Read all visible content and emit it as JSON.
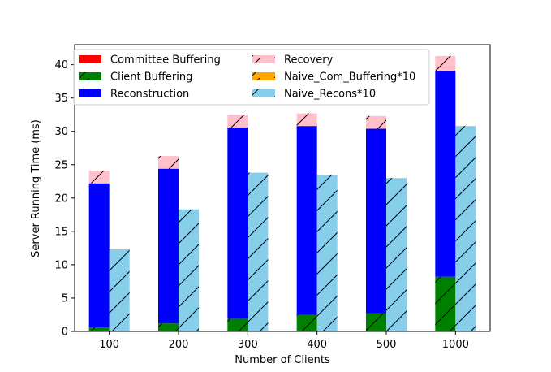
{
  "chart_data": {
    "type": "bar",
    "xlabel": "Number of Clients",
    "ylabel": "Server Running Time (ms)",
    "categories": [
      "100",
      "200",
      "300",
      "400",
      "500",
      "1000"
    ],
    "ylim": [
      0,
      43
    ],
    "yticks": [
      0,
      5,
      10,
      15,
      20,
      25,
      30,
      35,
      40
    ],
    "grid": false,
    "legend_position": "top-left",
    "stacked_series": [
      {
        "name": "Committee Buffering",
        "color": "#ff0000",
        "hatch": "none",
        "values": [
          0.1,
          0.1,
          0.1,
          0.1,
          0.1,
          0.1
        ]
      },
      {
        "name": "Client Buffering",
        "color": "#008000",
        "hatch": "slash",
        "values": [
          0.5,
          1.1,
          1.8,
          2.4,
          2.6,
          8.1
        ]
      },
      {
        "name": "Reconstruction",
        "color": "#0000ff",
        "hatch": "none",
        "values": [
          21.6,
          23.2,
          28.7,
          28.3,
          27.7,
          30.9
        ]
      },
      {
        "name": "Recovery",
        "color": "#ffc0cb",
        "hatch": "slash",
        "values": [
          1.9,
          1.9,
          1.9,
          1.9,
          1.9,
          2.2
        ]
      }
    ],
    "side_series": [
      {
        "name": "Naive_Com_Buffering*10",
        "color": "#ffa500",
        "hatch": "slash",
        "values": [
          0.1,
          0.1,
          0.1,
          0.1,
          0.1,
          0.1
        ]
      },
      {
        "name": "Naive_Recons*10",
        "color": "#87ceeb",
        "hatch": "slash",
        "values": [
          12.2,
          18.2,
          23.7,
          23.4,
          22.9,
          30.7
        ]
      }
    ],
    "legend_order": [
      "Committee Buffering",
      "Client Buffering",
      "Reconstruction",
      "Recovery",
      "Naive_Com_Buffering*10",
      "Naive_Recons*10"
    ]
  }
}
